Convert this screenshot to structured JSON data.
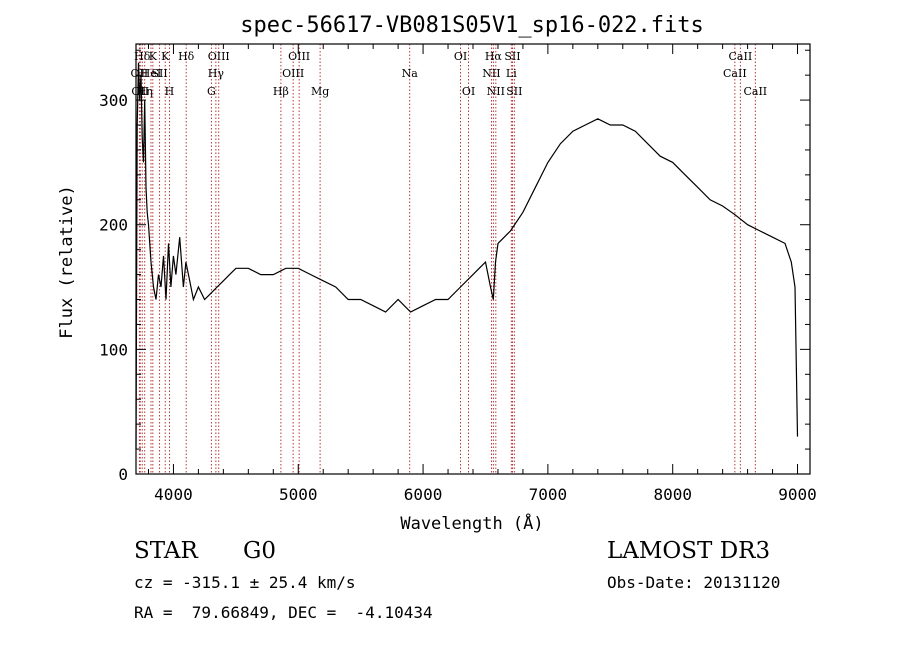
{
  "chart_data": {
    "type": "line",
    "title": "spec-56617-VB081S05V1_sp16-022.fits",
    "xlabel": "Wavelength (Å)",
    "ylabel": "Flux (relative)",
    "xlim": [
      3700,
      9100
    ],
    "ylim": [
      0,
      345
    ],
    "xticks": [
      4000,
      5000,
      6000,
      7000,
      8000,
      9000
    ],
    "yticks": [
      0,
      100,
      200,
      300
    ],
    "line_color": "#000000",
    "marker_color": "#b22222",
    "spectrum": {
      "x": [
        3700,
        3710,
        3720,
        3730,
        3740,
        3750,
        3760,
        3770,
        3780,
        3790,
        3800,
        3820,
        3840,
        3860,
        3880,
        3900,
        3920,
        3940,
        3960,
        3980,
        4000,
        4020,
        4050,
        4080,
        4100,
        4130,
        4160,
        4200,
        4250,
        4300,
        4350,
        4400,
        4450,
        4500,
        4600,
        4700,
        4800,
        4900,
        5000,
        5100,
        5200,
        5300,
        5400,
        5500,
        5600,
        5700,
        5800,
        5900,
        6000,
        6100,
        6200,
        6300,
        6400,
        6450,
        6500,
        6540,
        6563,
        6580,
        6600,
        6700,
        6800,
        6900,
        7000,
        7100,
        7200,
        7300,
        7400,
        7500,
        7600,
        7700,
        7800,
        7900,
        8000,
        8100,
        8200,
        8300,
        8400,
        8500,
        8600,
        8700,
        8800,
        8900,
        8950,
        8980,
        9000
      ],
      "y": [
        20,
        280,
        330,
        300,
        320,
        270,
        250,
        300,
        230,
        210,
        200,
        170,
        150,
        140,
        160,
        150,
        175,
        140,
        185,
        150,
        175,
        160,
        190,
        150,
        170,
        155,
        140,
        150,
        140,
        145,
        150,
        155,
        160,
        165,
        165,
        160,
        160,
        165,
        165,
        160,
        155,
        150,
        140,
        140,
        135,
        130,
        140,
        130,
        135,
        140,
        140,
        150,
        160,
        165,
        170,
        150,
        140,
        170,
        185,
        195,
        210,
        230,
        250,
        265,
        275,
        280,
        285,
        280,
        280,
        275,
        265,
        255,
        250,
        240,
        230,
        220,
        215,
        208,
        200,
        195,
        190,
        185,
        170,
        150,
        30
      ]
    },
    "markers": [
      {
        "wavelength": 3727,
        "label": "OII",
        "row": 2
      },
      {
        "wavelength": 3734,
        "label": "OII",
        "row": 3
      },
      {
        "wavelength": 3750,
        "label": "Hδ",
        "row": 1
      },
      {
        "wavelength": 3770,
        "label": "Hη",
        "row": 3
      },
      {
        "wavelength": 3835,
        "label": "K",
        "row": 1
      },
      {
        "wavelength": 3820,
        "label": "HeI",
        "row": 2
      },
      {
        "wavelength": 3889,
        "label": "SII",
        "row": 2
      },
      {
        "wavelength": 3934,
        "label": "K",
        "row": 1
      },
      {
        "wavelength": 3968,
        "label": "H",
        "row": 3
      },
      {
        "wavelength": 4102,
        "label": "Hδ",
        "row": 1
      },
      {
        "wavelength": 4304,
        "label": "G",
        "row": 3
      },
      {
        "wavelength": 4340,
        "label": "Hγ",
        "row": 2
      },
      {
        "wavelength": 4363,
        "label": "OIII",
        "row": 1
      },
      {
        "wavelength": 4861,
        "label": "Hβ",
        "row": 3
      },
      {
        "wavelength": 4959,
        "label": "OIII",
        "row": 2
      },
      {
        "wavelength": 5007,
        "label": "OIII",
        "row": 1
      },
      {
        "wavelength": 5175,
        "label": "Mg",
        "row": 3
      },
      {
        "wavelength": 5893,
        "label": "Na",
        "row": 2
      },
      {
        "wavelength": 6300,
        "label": "OI",
        "row": 1
      },
      {
        "wavelength": 6364,
        "label": "OI",
        "row": 3
      },
      {
        "wavelength": 6548,
        "label": "NII",
        "row": 2
      },
      {
        "wavelength": 6563,
        "label": "Hα",
        "row": 1
      },
      {
        "wavelength": 6583,
        "label": "NII",
        "row": 3
      },
      {
        "wavelength": 6707,
        "label": "Li",
        "row": 2
      },
      {
        "wavelength": 6716,
        "label": "SII",
        "row": 1
      },
      {
        "wavelength": 6731,
        "label": "SII",
        "row": 3
      },
      {
        "wavelength": 8498,
        "label": "CaII",
        "row": 2
      },
      {
        "wavelength": 8542,
        "label": "CaII",
        "row": 1
      },
      {
        "wavelength": 8662,
        "label": "CaII",
        "row": 3
      }
    ]
  },
  "footer": {
    "object_type": "STAR",
    "subclass": "G0",
    "survey": "LAMOST DR3",
    "velocity": "cz = -315.1 ± 25.4 km/s",
    "obs_date": "Obs-Date: 20131120",
    "coordinates": "RA =  79.66849, DEC =  -4.10434"
  }
}
